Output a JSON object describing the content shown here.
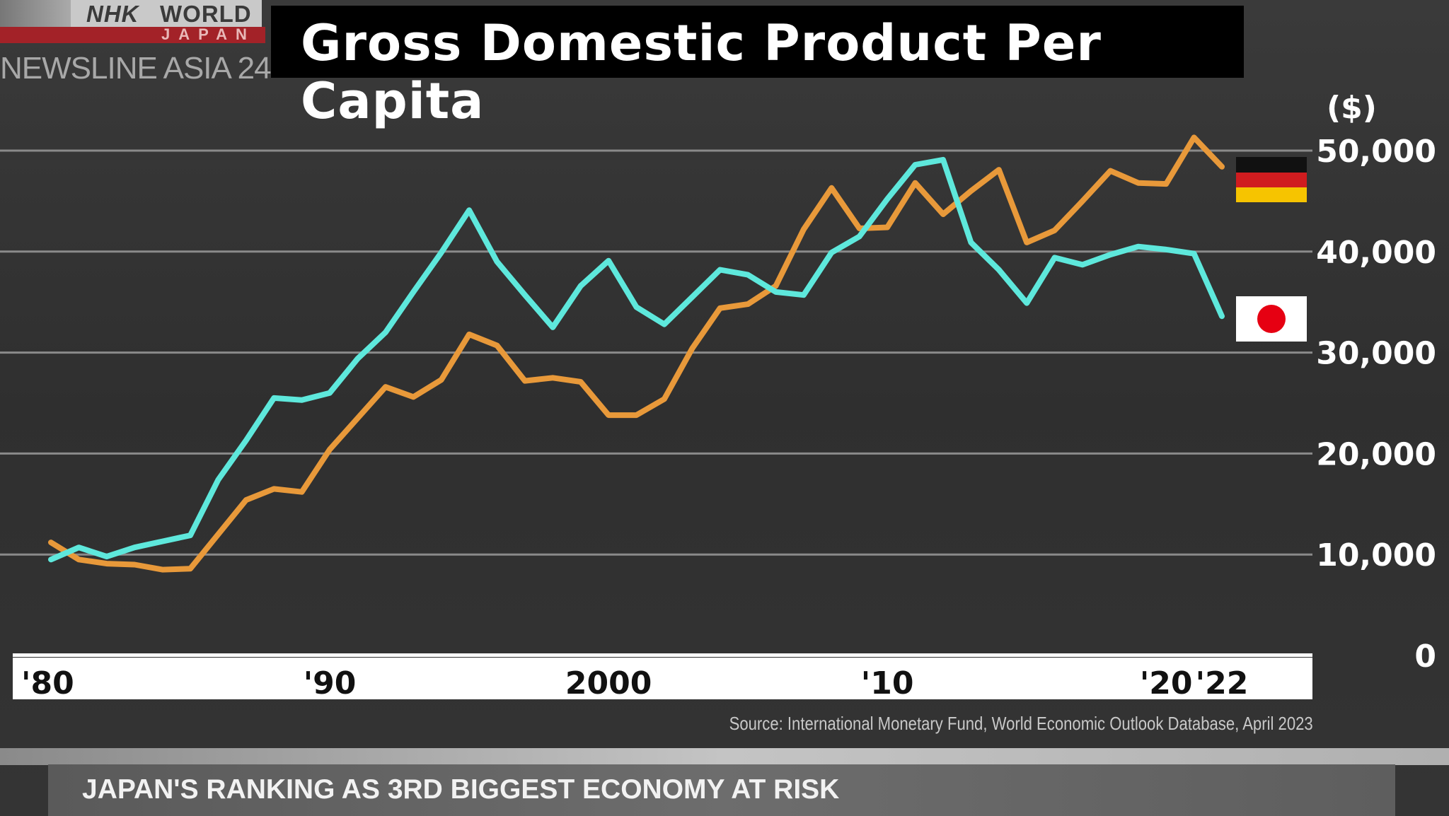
{
  "broadcaster": {
    "logo_line1": "NHK WORLD",
    "logo_line2": "JAPAN",
    "program": "NEWSLINE ASIA 24"
  },
  "headline": "JAPAN'S RANKING AS 3RD BIGGEST ECONOMY AT RISK",
  "chart_data": {
    "type": "line",
    "title": "Gross Domestic Product Per Capita",
    "ylabel": "($)",
    "ylim": [
      0,
      50000
    ],
    "yticks": [
      0,
      10000,
      20000,
      30000,
      40000,
      50000
    ],
    "ytick_labels": [
      "0",
      "10,000",
      "20,000",
      "30,000",
      "40,000",
      "50,000"
    ],
    "xlim": [
      1980,
      2022
    ],
    "xticks": [
      1980,
      1990,
      2000,
      2010,
      2020,
      2022
    ],
    "xtick_labels": [
      "'80",
      "'90",
      "2000",
      "'10",
      "'20",
      "'22"
    ],
    "grid": true,
    "legend": "flags at right end of lines",
    "x": [
      1980,
      1981,
      1982,
      1983,
      1984,
      1985,
      1986,
      1987,
      1988,
      1989,
      1990,
      1991,
      1992,
      1993,
      1994,
      1995,
      1996,
      1997,
      1998,
      1999,
      2000,
      2001,
      2002,
      2003,
      2004,
      2005,
      2006,
      2007,
      2008,
      2009,
      2010,
      2011,
      2012,
      2013,
      2014,
      2015,
      2016,
      2017,
      2018,
      2019,
      2020,
      2021,
      2022
    ],
    "series": [
      {
        "flag": "japan",
        "color": "#5ee8dc",
        "values": [
          9500,
          10700,
          9800,
          10700,
          11300,
          11900,
          17400,
          21300,
          25500,
          25300,
          26000,
          29400,
          32000,
          36000,
          39900,
          44100,
          39000,
          35700,
          32500,
          36600,
          39100,
          34500,
          32800,
          35500,
          38200,
          37700,
          36000,
          35700,
          39900,
          41500,
          45200,
          48600,
          49100,
          40900,
          38200,
          34900,
          39400,
          38700,
          39700,
          40500,
          40200,
          39800,
          33600
        ]
      },
      {
        "flag": "germany",
        "color": "#e8993a",
        "values": [
          11200,
          9500,
          9100,
          9000,
          8500,
          8600,
          12000,
          15400,
          16500,
          16200,
          20400,
          23500,
          26600,
          25600,
          27300,
          31800,
          30700,
          27200,
          27500,
          27100,
          23800,
          23800,
          25400,
          30400,
          34400,
          34800,
          36600,
          42200,
          46300,
          42300,
          42400,
          46800,
          43700,
          46000,
          48100,
          40900,
          42100,
          45000,
          48000,
          46800,
          46700,
          51300,
          48400
        ]
      }
    ],
    "source": "Source: International Monetary Fund, World Economic Outlook Database, April 2023"
  }
}
